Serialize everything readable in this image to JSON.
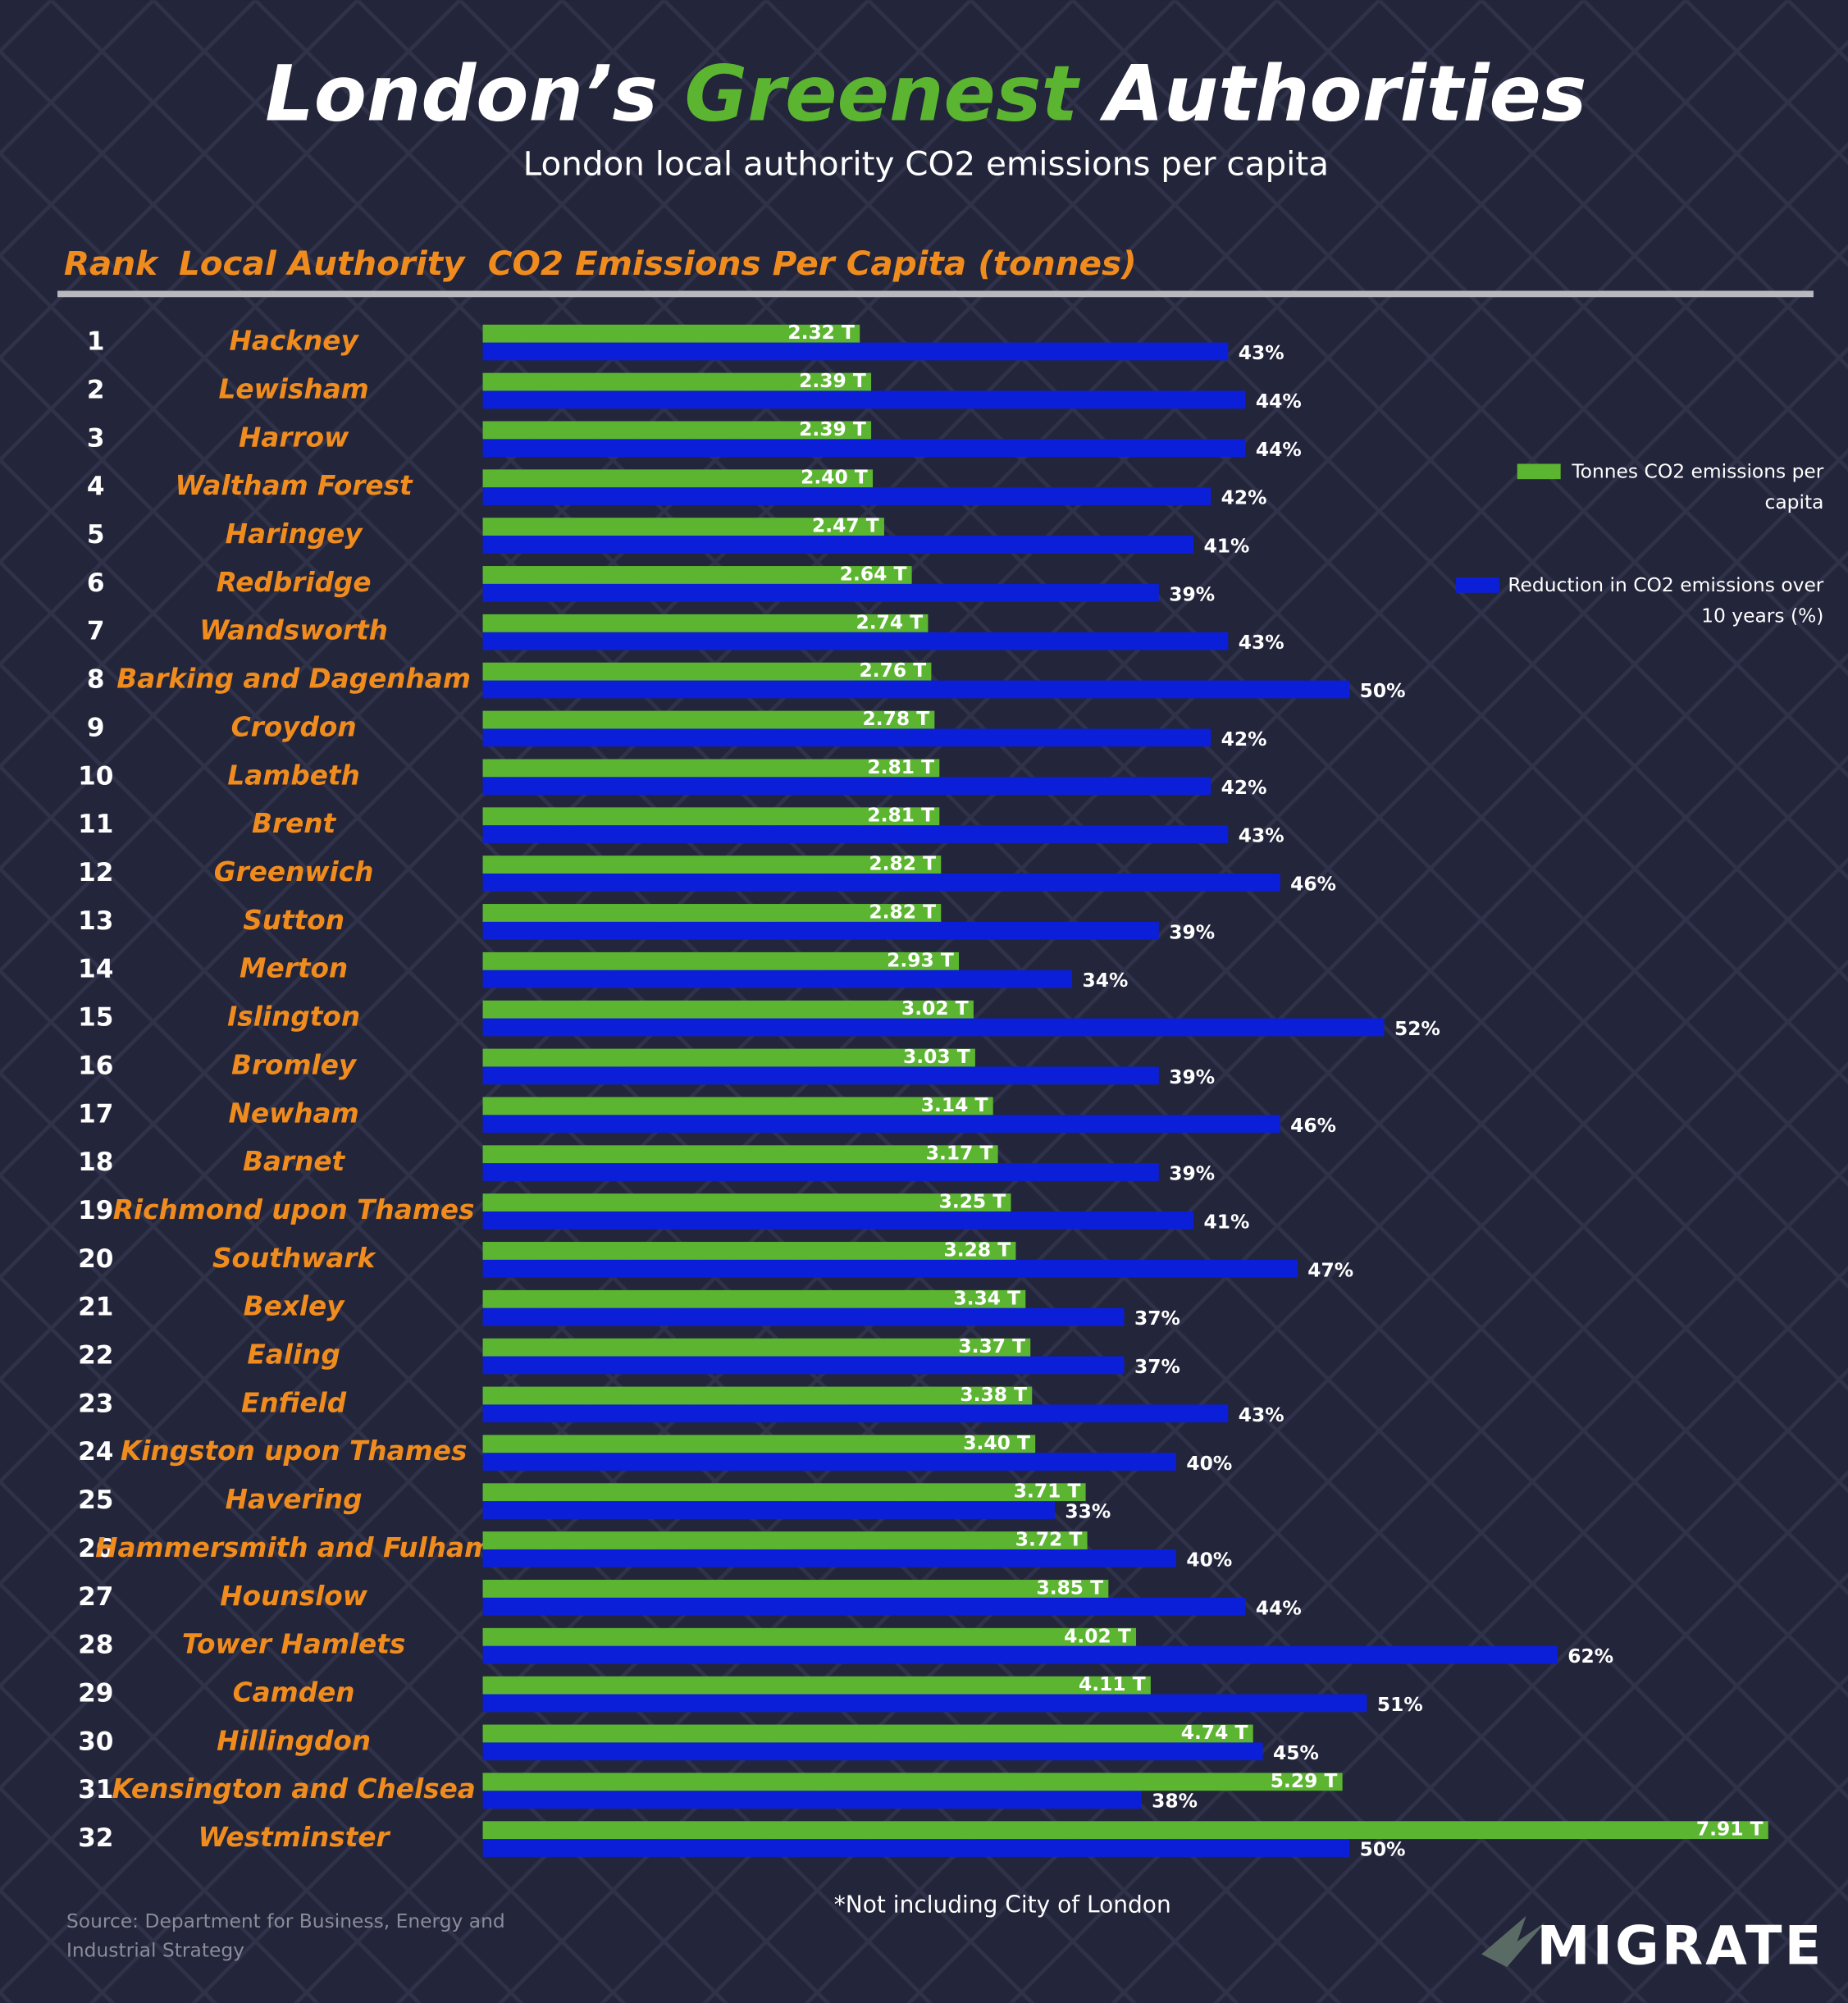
{
  "chart_data": {
    "type": "bar",
    "title_parts": [
      "London’s",
      "Greenest",
      "Authorities"
    ],
    "subtitle": "London local authority CO2 emissions per capita",
    "column_headers": [
      "Rank",
      "Local Authority",
      "CO2 Emissions Per Capita (tonnes)"
    ],
    "ranks": [
      1,
      2,
      3,
      4,
      5,
      6,
      7,
      8,
      9,
      10,
      11,
      12,
      13,
      14,
      15,
      16,
      17,
      18,
      19,
      20,
      21,
      22,
      23,
      24,
      25,
      26,
      27,
      28,
      29,
      30,
      31,
      32
    ],
    "categories": [
      "Hackney",
      "Lewisham",
      "Harrow",
      "Waltham Forest",
      "Haringey",
      "Redbridge",
      "Wandsworth",
      "Barking and Dagenham",
      "Croydon",
      "Lambeth",
      "Brent",
      "Greenwich",
      "Sutton",
      "Merton",
      "Islington",
      "Bromley",
      "Newham",
      "Barnet",
      "Richmond upon Thames",
      "Southwark",
      "Bexley",
      "Ealing",
      "Enfield",
      "Kingston upon Thames",
      "Havering",
      "Hammersmith and Fulham",
      "Hounslow",
      "Tower Hamlets",
      "Camden",
      "Hillingdon",
      "Kensington and Chelsea",
      "Westminster"
    ],
    "series": [
      {
        "name": "Tonnes CO2 emissions per capita",
        "color": "#5cb531",
        "values": [
          2.32,
          2.39,
          2.39,
          2.4,
          2.47,
          2.64,
          2.74,
          2.76,
          2.78,
          2.81,
          2.81,
          2.82,
          2.82,
          2.93,
          3.02,
          3.03,
          3.14,
          3.17,
          3.25,
          3.28,
          3.34,
          3.37,
          3.38,
          3.4,
          3.71,
          3.72,
          3.85,
          4.02,
          4.11,
          4.74,
          5.29,
          7.91
        ],
        "value_labels": [
          "2.32 T",
          "2.39 T",
          "2.39 T",
          "2.40 T",
          "2.47 T",
          "2.64 T",
          "2.74 T",
          "2.76 T",
          "2.78 T",
          "2.81 T",
          "2.81 T",
          "2.82 T",
          "2.82 T",
          "2.93 T",
          "3.02 T",
          "3.03 T",
          "3.14 T",
          "3.17 T",
          "3.25 T",
          "3.28 T",
          "3.34 T",
          "3.37 T",
          "3.38 T",
          "3.40 T",
          "3.71 T",
          "3.72 T",
          "3.85 T",
          "4.02 T",
          "4.11 T",
          "4.74 T",
          "5.29 T",
          "7.91 T"
        ]
      },
      {
        "name": "Reduction in CO2 emissions over 10 years (%)",
        "color": "#0c1fd8",
        "axis": "x2",
        "values": [
          43,
          44,
          44,
          42,
          41,
          39,
          43,
          50,
          42,
          42,
          43,
          46,
          39,
          34,
          52,
          39,
          46,
          39,
          41,
          47,
          37,
          37,
          43,
          40,
          33,
          40,
          44,
          62,
          51,
          45,
          38,
          50
        ],
        "value_labels": [
          "43%",
          "44%",
          "44%",
          "42%",
          "41%",
          "39%",
          "43%",
          "50%",
          "42%",
          "42%",
          "43%",
          "46%",
          "39%",
          "34%",
          "52%",
          "39%",
          "46%",
          "39%",
          "41%",
          "47%",
          "37%",
          "37%",
          "43%",
          "40%",
          "33%",
          "40%",
          "44%",
          "62%",
          "51%",
          "45%",
          "38%",
          "50%"
        ]
      }
    ],
    "xlim": [
      0,
      8
    ],
    "x2lim": [
      0,
      75
    ],
    "legend": "right",
    "footnote": "*Not including City of London",
    "source": "Source: Department for Business, Energy and Industrial Strategy",
    "brand": "MIGRATE"
  }
}
